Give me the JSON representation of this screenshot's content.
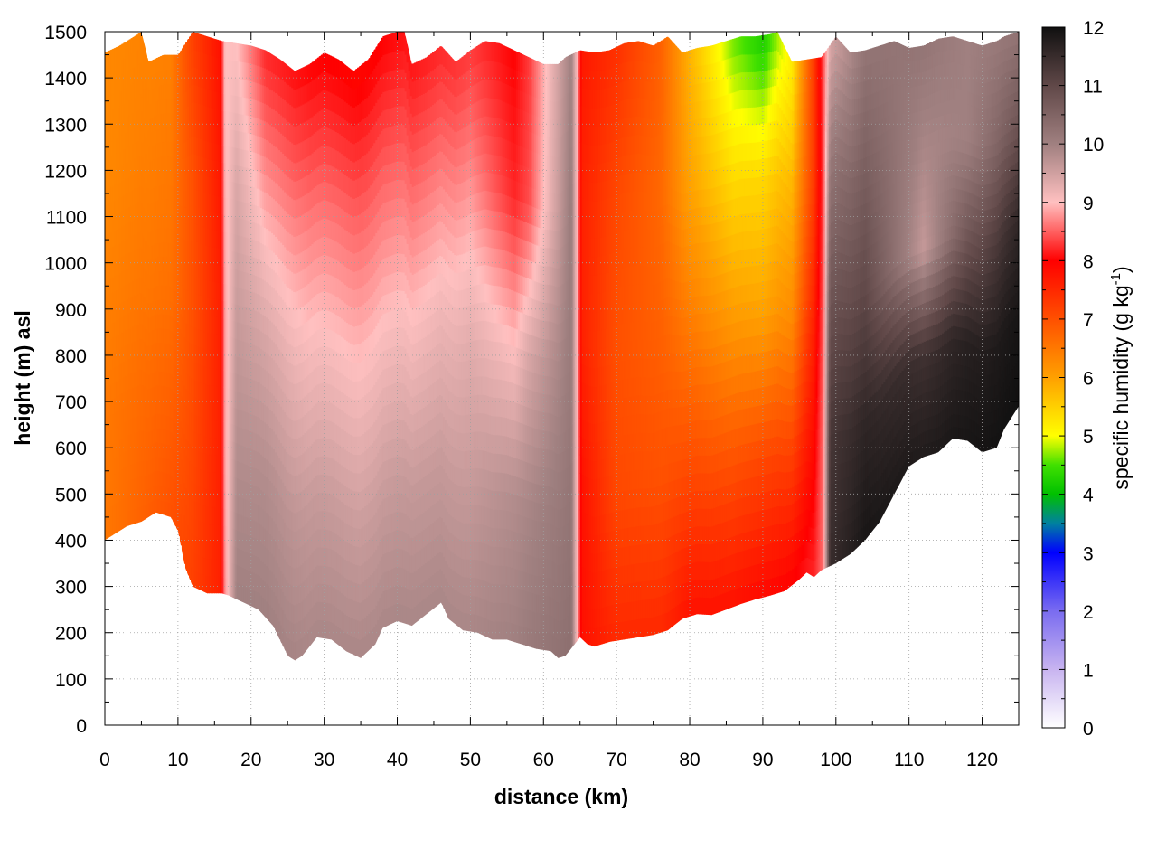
{
  "chart_data": {
    "type": "heatmap",
    "title": "",
    "xlabel": "distance (km)",
    "ylabel": "height (m) asl",
    "xlim": [
      0,
      125
    ],
    "ylim": [
      0,
      1500
    ],
    "xticks": [
      0,
      10,
      20,
      30,
      40,
      50,
      60,
      70,
      80,
      90,
      100,
      110,
      120
    ],
    "yticks": [
      0,
      100,
      200,
      300,
      400,
      500,
      600,
      700,
      800,
      900,
      1000,
      1100,
      1200,
      1300,
      1400,
      1500
    ],
    "grid": true,
    "colorbar": {
      "label_main": "specific humidity (g kg",
      "label_sup": "-1",
      "label_close": ")",
      "range": [
        0,
        12
      ],
      "ticks": [
        0,
        1,
        2,
        3,
        4,
        5,
        6,
        7,
        8,
        9,
        10,
        11,
        12
      ],
      "stops": [
        {
          "value": 0,
          "color": "#ffffff"
        },
        {
          "value": 1,
          "color": "#c8b4f0"
        },
        {
          "value": 2,
          "color": "#7a6cf0"
        },
        {
          "value": 3,
          "color": "#0000ff"
        },
        {
          "value": 3.5,
          "color": "#0080a0"
        },
        {
          "value": 4,
          "color": "#00c000"
        },
        {
          "value": 4.5,
          "color": "#40e000"
        },
        {
          "value": 5,
          "color": "#ffff00"
        },
        {
          "value": 6,
          "color": "#ffa000"
        },
        {
          "value": 7,
          "color": "#ff5000"
        },
        {
          "value": 8,
          "color": "#ff0000"
        },
        {
          "value": 9,
          "color": "#ffc0c0"
        },
        {
          "value": 10,
          "color": "#a08080"
        },
        {
          "value": 11,
          "color": "#604848"
        },
        {
          "value": 12,
          "color": "#101010"
        }
      ]
    },
    "terrain_bottom": [
      [
        0,
        400
      ],
      [
        3,
        430
      ],
      [
        5,
        440
      ],
      [
        7,
        460
      ],
      [
        9,
        450
      ],
      [
        10,
        420
      ],
      [
        11,
        340
      ],
      [
        12,
        300
      ],
      [
        14,
        285
      ],
      [
        16,
        285
      ],
      [
        17,
        280
      ],
      [
        19,
        265
      ],
      [
        21,
        250
      ],
      [
        23,
        215
      ],
      [
        25,
        150
      ],
      [
        26,
        140
      ],
      [
        27,
        150
      ],
      [
        29,
        190
      ],
      [
        31,
        185
      ],
      [
        33,
        160
      ],
      [
        35,
        145
      ],
      [
        37,
        175
      ],
      [
        38,
        210
      ],
      [
        40,
        225
      ],
      [
        42,
        215
      ],
      [
        44,
        240
      ],
      [
        46,
        265
      ],
      [
        47,
        230
      ],
      [
        49,
        205
      ],
      [
        51,
        200
      ],
      [
        53,
        185
      ],
      [
        55,
        185
      ],
      [
        57,
        175
      ],
      [
        59,
        165
      ],
      [
        61,
        160
      ],
      [
        62,
        145
      ],
      [
        63,
        150
      ],
      [
        65,
        190
      ],
      [
        66,
        175
      ],
      [
        67,
        170
      ],
      [
        69,
        180
      ],
      [
        71,
        185
      ],
      [
        73,
        190
      ],
      [
        75,
        195
      ],
      [
        77,
        205
      ],
      [
        79,
        230
      ],
      [
        81,
        240
      ],
      [
        83,
        238
      ],
      [
        85,
        250
      ],
      [
        87,
        262
      ],
      [
        89,
        272
      ],
      [
        91,
        280
      ],
      [
        93,
        290
      ],
      [
        95,
        315
      ],
      [
        96,
        330
      ],
      [
        97,
        320
      ],
      [
        98,
        335
      ],
      [
        100,
        350
      ],
      [
        102,
        370
      ],
      [
        104,
        400
      ],
      [
        106,
        440
      ],
      [
        108,
        500
      ],
      [
        110,
        560
      ],
      [
        112,
        580
      ],
      [
        114,
        590
      ],
      [
        116,
        620
      ],
      [
        118,
        615
      ],
      [
        120,
        590
      ],
      [
        122,
        600
      ],
      [
        123,
        640
      ],
      [
        125,
        690
      ]
    ],
    "terrain_top": [
      [
        0,
        1455
      ],
      [
        2,
        1470
      ],
      [
        4,
        1490
      ],
      [
        5,
        1500
      ],
      [
        6,
        1435
      ],
      [
        8,
        1450
      ],
      [
        10,
        1450
      ],
      [
        12,
        1500
      ],
      [
        14,
        1490
      ],
      [
        16,
        1480
      ],
      [
        18,
        1475
      ],
      [
        20,
        1470
      ],
      [
        22,
        1460
      ],
      [
        24,
        1440
      ],
      [
        26,
        1415
      ],
      [
        28,
        1430
      ],
      [
        30,
        1455
      ],
      [
        32,
        1440
      ],
      [
        34,
        1415
      ],
      [
        36,
        1440
      ],
      [
        38,
        1490
      ],
      [
        40,
        1500
      ],
      [
        41,
        1500
      ],
      [
        42,
        1430
      ],
      [
        44,
        1445
      ],
      [
        46,
        1470
      ],
      [
        48,
        1435
      ],
      [
        50,
        1460
      ],
      [
        52,
        1480
      ],
      [
        54,
        1475
      ],
      [
        56,
        1460
      ],
      [
        58,
        1445
      ],
      [
        60,
        1430
      ],
      [
        62,
        1430
      ],
      [
        63,
        1445
      ],
      [
        65,
        1460
      ],
      [
        67,
        1455
      ],
      [
        69,
        1460
      ],
      [
        71,
        1475
      ],
      [
        73,
        1480
      ],
      [
        75,
        1470
      ],
      [
        77,
        1490
      ],
      [
        79,
        1455
      ],
      [
        81,
        1465
      ],
      [
        83,
        1470
      ],
      [
        85,
        1480
      ],
      [
        87,
        1490
      ],
      [
        89,
        1490
      ],
      [
        91,
        1495
      ],
      [
        92,
        1500
      ],
      [
        94,
        1435
      ],
      [
        96,
        1440
      ],
      [
        98,
        1445
      ],
      [
        100,
        1490
      ],
      [
        102,
        1455
      ],
      [
        104,
        1460
      ],
      [
        106,
        1470
      ],
      [
        108,
        1480
      ],
      [
        110,
        1465
      ],
      [
        112,
        1470
      ],
      [
        114,
        1485
      ],
      [
        116,
        1490
      ],
      [
        118,
        1480
      ],
      [
        120,
        1470
      ],
      [
        122,
        1480
      ],
      [
        123,
        1490
      ],
      [
        125,
        1500
      ]
    ],
    "columns": [
      {
        "x": 0,
        "values": [
          6.5,
          6.5,
          6.4,
          6.3,
          6.3
        ]
      },
      {
        "x": 9,
        "values": [
          7.0,
          6.8,
          6.6,
          6.5,
          6.4
        ]
      },
      {
        "x": 12,
        "values": [
          7.2,
          7.1,
          7.0,
          7.0,
          7.2
        ]
      },
      {
        "x": 15.8,
        "values": [
          7.6,
          7.6,
          7.6,
          7.7,
          7.8
        ]
      },
      {
        "x": 16.4,
        "values": [
          8.7,
          8.8,
          8.8,
          8.9,
          9.0
        ]
      },
      {
        "x": 18,
        "values": [
          10.0,
          9.8,
          9.6,
          9.4,
          9.0
        ]
      },
      {
        "x": 22,
        "values": [
          10.0,
          9.8,
          9.4,
          8.8,
          8.2
        ]
      },
      {
        "x": 28,
        "values": [
          9.9,
          9.6,
          9.1,
          8.6,
          8.0
        ]
      },
      {
        "x": 35,
        "values": [
          9.9,
          9.5,
          9.0,
          8.5,
          7.9
        ]
      },
      {
        "x": 42,
        "values": [
          9.9,
          9.6,
          9.1,
          8.6,
          8.1
        ]
      },
      {
        "x": 50,
        "values": [
          9.9,
          9.6,
          9.3,
          8.8,
          8.3
        ]
      },
      {
        "x": 56,
        "values": [
          10.0,
          9.8,
          9.0,
          8.2,
          8.0
        ]
      },
      {
        "x": 58,
        "values": [
          10.1,
          9.9,
          9.4,
          8.4,
          8.3
        ]
      },
      {
        "x": 63.8,
        "values": [
          10.3,
          10.2,
          10.1,
          10.1,
          10.0
        ]
      },
      {
        "x": 64.6,
        "values": [
          9.0,
          9.0,
          9.0,
          9.0,
          9.0
        ]
      },
      {
        "x": 65.2,
        "values": [
          7.8,
          7.8,
          7.6,
          7.6,
          7.7
        ]
      },
      {
        "x": 70,
        "values": [
          7.5,
          7.1,
          7.0,
          7.1,
          7.4
        ]
      },
      {
        "x": 76,
        "values": [
          7.5,
          7.0,
          6.8,
          6.7,
          6.8
        ]
      },
      {
        "x": 80,
        "values": [
          7.8,
          7.1,
          6.5,
          6.0,
          5.8
        ]
      },
      {
        "x": 86,
        "values": [
          7.8,
          7.0,
          6.1,
          5.4,
          4.6
        ]
      },
      {
        "x": 90,
        "values": [
          7.9,
          7.1,
          6.0,
          5.4,
          4.2
        ]
      },
      {
        "x": 94,
        "values": [
          8.0,
          7.2,
          6.3,
          5.8,
          5.2
        ]
      },
      {
        "x": 97,
        "values": [
          8.2,
          7.9,
          7.6,
          7.3,
          7.3
        ]
      },
      {
        "x": 98.3,
        "values": [
          8.6,
          8.6,
          8.5,
          8.4,
          8.4
        ]
      },
      {
        "x": 99.2,
        "values": [
          11.5,
          11.3,
          10.8,
          10.2,
          9.4
        ]
      },
      {
        "x": 104,
        "values": [
          11.9,
          11.6,
          11.0,
          10.6,
          10.2
        ]
      },
      {
        "x": 112,
        "values": [
          11.8,
          11.4,
          9.6,
          9.9,
          10.2
        ]
      },
      {
        "x": 118,
        "values": [
          11.9,
          11.7,
          10.8,
          10.0,
          10.0
        ]
      },
      {
        "x": 125,
        "values": [
          12.0,
          11.9,
          11.6,
          10.8,
          10.2
        ]
      }
    ],
    "column_levels": [
      0,
      0.25,
      0.5,
      0.75,
      1
    ]
  }
}
